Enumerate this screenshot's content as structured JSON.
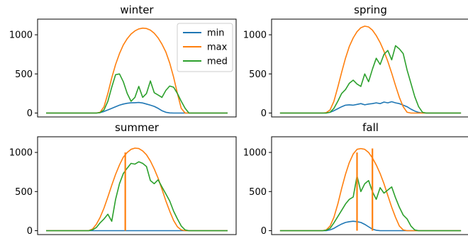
{
  "chart_data": [
    {
      "type": "line",
      "title": "winter",
      "ylim": [
        0,
        1200
      ],
      "yticks": [
        0,
        500,
        1000
      ],
      "grid": false,
      "legend": "top-right",
      "x": [
        0,
        1,
        2,
        3,
        4,
        5,
        6,
        7,
        8,
        9,
        10,
        11,
        12,
        13,
        14,
        15,
        16,
        17,
        18,
        19,
        20,
        21,
        22,
        23,
        24,
        25,
        26,
        27,
        28,
        29,
        30,
        31,
        32,
        33,
        34,
        35,
        36,
        37,
        38,
        39,
        40,
        41,
        42,
        43,
        44,
        45,
        46,
        47
      ],
      "series": [
        {
          "name": "min",
          "color": "#1f77b4",
          "values": [
            0,
            0,
            0,
            0,
            0,
            0,
            0,
            0,
            0,
            0,
            0,
            0,
            0,
            0,
            5,
            20,
            40,
            60,
            80,
            100,
            115,
            125,
            130,
            132,
            135,
            128,
            115,
            100,
            85,
            60,
            30,
            10,
            2,
            0,
            0,
            0,
            0,
            0,
            0,
            0,
            0,
            0,
            0,
            0,
            0,
            0,
            0,
            0
          ]
        },
        {
          "name": "max",
          "color": "#ff7f0e",
          "values": [
            0,
            0,
            0,
            0,
            0,
            0,
            0,
            0,
            0,
            0,
            0,
            0,
            0,
            0,
            10,
            80,
            250,
            450,
            620,
            760,
            870,
            950,
            1010,
            1050,
            1075,
            1085,
            1080,
            1060,
            1020,
            960,
            880,
            780,
            640,
            460,
            250,
            60,
            0,
            0,
            0,
            0,
            0,
            0,
            0,
            0,
            0,
            0,
            0,
            0
          ]
        },
        {
          "name": "med",
          "color": "#2ca02c",
          "values": [
            0,
            0,
            0,
            0,
            0,
            0,
            0,
            0,
            0,
            0,
            0,
            0,
            0,
            0,
            5,
            40,
            150,
            330,
            490,
            500,
            400,
            250,
            150,
            200,
            340,
            200,
            250,
            410,
            260,
            230,
            200,
            290,
            345,
            330,
            250,
            150,
            60,
            0,
            0,
            0,
            0,
            0,
            0,
            0,
            0,
            0,
            0,
            0
          ]
        }
      ]
    },
    {
      "type": "line",
      "title": "spring",
      "ylim": [
        0,
        1200
      ],
      "yticks": [
        0,
        500,
        1000
      ],
      "grid": false,
      "x": [
        0,
        1,
        2,
        3,
        4,
        5,
        6,
        7,
        8,
        9,
        10,
        11,
        12,
        13,
        14,
        15,
        16,
        17,
        18,
        19,
        20,
        21,
        22,
        23,
        24,
        25,
        26,
        27,
        28,
        29,
        30,
        31,
        32,
        33,
        34,
        35,
        36,
        37,
        38,
        39,
        40,
        41,
        42,
        43,
        44,
        45,
        46,
        47
      ],
      "series": [
        {
          "name": "min",
          "color": "#1f77b4",
          "values": [
            0,
            0,
            0,
            0,
            0,
            0,
            0,
            0,
            0,
            0,
            0,
            0,
            0,
            10,
            30,
            55,
            80,
            100,
            105,
            100,
            110,
            120,
            105,
            115,
            120,
            130,
            120,
            140,
            130,
            145,
            130,
            120,
            100,
            80,
            50,
            25,
            8,
            0,
            0,
            0,
            0,
            0,
            0,
            0,
            0,
            0,
            0,
            0
          ]
        },
        {
          "name": "max",
          "color": "#ff7f0e",
          "values": [
            0,
            0,
            0,
            0,
            0,
            0,
            0,
            0,
            0,
            0,
            0,
            0,
            5,
            40,
            150,
            330,
            520,
            700,
            850,
            960,
            1040,
            1090,
            1110,
            1100,
            1060,
            990,
            900,
            790,
            660,
            510,
            350,
            200,
            80,
            10,
            0,
            0,
            0,
            0,
            0,
            0,
            0,
            0,
            0,
            0,
            0,
            0,
            0,
            0
          ]
        },
        {
          "name": "med",
          "color": "#2ca02c",
          "values": [
            0,
            0,
            0,
            0,
            0,
            0,
            0,
            0,
            0,
            0,
            0,
            0,
            0,
            10,
            60,
            150,
            250,
            300,
            380,
            420,
            370,
            340,
            500,
            400,
            560,
            700,
            620,
            750,
            800,
            680,
            860,
            820,
            760,
            550,
            380,
            210,
            80,
            10,
            0,
            0,
            0,
            0,
            0,
            0,
            0,
            0,
            0,
            0
          ]
        }
      ]
    },
    {
      "type": "line",
      "title": "summer",
      "ylim": [
        0,
        1200
      ],
      "yticks": [
        0,
        500,
        1000
      ],
      "grid": false,
      "x": [
        0,
        1,
        2,
        3,
        4,
        5,
        6,
        7,
        8,
        9,
        10,
        11,
        12,
        13,
        14,
        15,
        16,
        17,
        18,
        19,
        20,
        21,
        22,
        23,
        24,
        25,
        26,
        27,
        28,
        29,
        30,
        31,
        32,
        33,
        34,
        35,
        36,
        37,
        38,
        39,
        40,
        41,
        42,
        43,
        44,
        45,
        46,
        47
      ],
      "series": [
        {
          "name": "min",
          "color": "#1f77b4",
          "values": [
            0,
            0,
            0,
            0,
            0,
            0,
            0,
            0,
            0,
            0,
            0,
            0,
            0,
            0,
            0,
            0,
            0,
            0,
            0,
            0,
            0,
            0,
            0,
            0,
            0,
            0,
            0,
            0,
            0,
            0,
            0,
            0,
            0,
            0,
            0,
            0,
            0,
            0,
            0,
            0,
            0,
            0,
            0,
            0,
            0,
            0,
            0,
            0
          ]
        },
        {
          "name": "max",
          "color": "#ff7f0e",
          "values": [
            0,
            0,
            0,
            0,
            0,
            0,
            0,
            0,
            0,
            0,
            0,
            0,
            20,
            80,
            170,
            290,
            430,
            580,
            720,
            840,
            940,
            1000,
            1040,
            1055,
            1050,
            1020,
            970,
            890,
            790,
            670,
            530,
            380,
            250,
            130,
            50,
            10,
            0,
            0,
            0,
            0,
            0,
            0,
            0,
            0,
            0,
            0,
            0,
            0
          ]
        },
        {
          "name": "med",
          "color": "#2ca02c",
          "values": [
            0,
            0,
            0,
            0,
            0,
            0,
            0,
            0,
            0,
            0,
            0,
            0,
            10,
            40,
            100,
            150,
            210,
            120,
            400,
            600,
            730,
            800,
            860,
            850,
            880,
            860,
            820,
            640,
            600,
            650,
            560,
            470,
            380,
            250,
            150,
            60,
            10,
            0,
            0,
            0,
            0,
            0,
            0,
            0,
            0,
            0,
            0,
            0
          ]
        }
      ],
      "vlines": [
        {
          "x": 20.5,
          "color": "#ff7f0e",
          "value": 1000
        }
      ]
    },
    {
      "type": "line",
      "title": "fall",
      "ylim": [
        0,
        1200
      ],
      "yticks": [
        0,
        500,
        1000
      ],
      "grid": false,
      "x": [
        0,
        1,
        2,
        3,
        4,
        5,
        6,
        7,
        8,
        9,
        10,
        11,
        12,
        13,
        14,
        15,
        16,
        17,
        18,
        19,
        20,
        21,
        22,
        23,
        24,
        25,
        26,
        27,
        28,
        29,
        30,
        31,
        32,
        33,
        34,
        35,
        36,
        37,
        38,
        39,
        40,
        41,
        42,
        43,
        44,
        45,
        46,
        47
      ],
      "series": [
        {
          "name": "min",
          "color": "#1f77b4",
          "values": [
            0,
            0,
            0,
            0,
            0,
            0,
            0,
            0,
            0,
            0,
            0,
            0,
            0,
            10,
            30,
            60,
            85,
            105,
            115,
            120,
            115,
            105,
            80,
            50,
            20,
            5,
            0,
            0,
            0,
            0,
            0,
            0,
            0,
            0,
            0,
            0,
            0,
            0,
            0,
            0,
            0,
            0,
            0,
            0,
            0,
            0,
            0,
            0
          ]
        },
        {
          "name": "max",
          "color": "#ff7f0e",
          "values": [
            0,
            0,
            0,
            0,
            0,
            0,
            0,
            0,
            0,
            0,
            0,
            0,
            10,
            60,
            170,
            340,
            540,
            720,
            870,
            980,
            1040,
            1050,
            1040,
            1000,
            930,
            840,
            730,
            600,
            450,
            300,
            170,
            60,
            10,
            0,
            0,
            0,
            0,
            0,
            0,
            0,
            0,
            0,
            0,
            0,
            0,
            0,
            0,
            0
          ]
        },
        {
          "name": "med",
          "color": "#2ca02c",
          "values": [
            0,
            0,
            0,
            0,
            0,
            0,
            0,
            0,
            0,
            0,
            0,
            0,
            5,
            30,
            100,
            180,
            260,
            340,
            400,
            430,
            700,
            500,
            600,
            640,
            500,
            400,
            550,
            480,
            520,
            560,
            420,
            300,
            200,
            150,
            60,
            10,
            0,
            0,
            0,
            0,
            0,
            0,
            0,
            0,
            0,
            0,
            0,
            0
          ]
        }
      ],
      "vlines": [
        {
          "x": 20.0,
          "color": "#ff7f0e",
          "value": 1000
        },
        {
          "x": 24.0,
          "color": "#ff7f0e",
          "value": 1050
        }
      ]
    }
  ]
}
